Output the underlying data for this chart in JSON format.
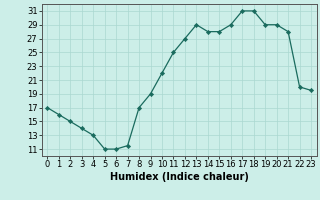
{
  "x": [
    0,
    1,
    2,
    3,
    4,
    5,
    6,
    7,
    8,
    9,
    10,
    11,
    12,
    13,
    14,
    15,
    16,
    17,
    18,
    19,
    20,
    21,
    22,
    23
  ],
  "y": [
    17,
    16,
    15,
    14,
    13,
    11,
    11,
    11.5,
    17,
    19,
    22,
    25,
    27,
    29,
    28,
    28,
    29,
    31,
    31,
    29,
    29,
    28,
    20,
    19.5
  ],
  "xlabel": "Humidex (Indice chaleur)",
  "xlim": [
    -0.5,
    23.5
  ],
  "ylim": [
    10,
    32
  ],
  "yticks": [
    11,
    13,
    15,
    17,
    19,
    21,
    23,
    25,
    27,
    29,
    31
  ],
  "xticks": [
    0,
    1,
    2,
    3,
    4,
    5,
    6,
    7,
    8,
    9,
    10,
    11,
    12,
    13,
    14,
    15,
    16,
    17,
    18,
    19,
    20,
    21,
    22,
    23
  ],
  "line_color": "#1a6b5e",
  "marker_color": "#1a6b5e",
  "bg_color": "#cceee8",
  "grid_color": "#aad8d0",
  "xlabel_fontsize": 7,
  "tick_fontsize": 6
}
